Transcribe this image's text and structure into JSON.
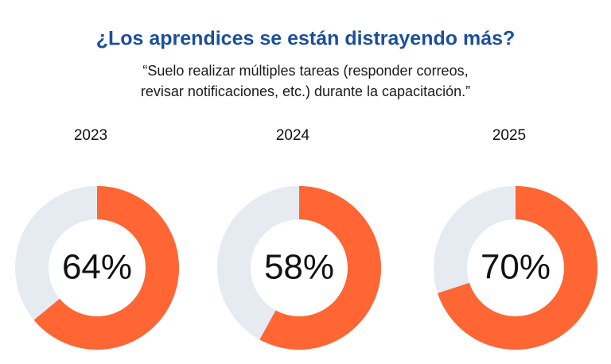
{
  "title": "¿Los aprendices se están distrayendo más?",
  "subtitle": [
    "“Suelo realizar múltiples tareas (responder correos,",
    "revisar notificaciones, etc.) durante la capacitación.”"
  ],
  "chart_data": [
    {
      "type": "donut",
      "title": "2023",
      "values": [
        64
      ],
      "value_labels": [
        "64%"
      ],
      "color": "#ff6633",
      "track_color": "#e6ebf2"
    },
    {
      "type": "donut",
      "title": "2024",
      "values": [
        58
      ],
      "value_labels": [
        "58%"
      ],
      "color": "#ff6633",
      "track_color": "#e6ebf2"
    },
    {
      "type": "donut",
      "title": "2025",
      "values": [
        70
      ],
      "value_labels": [
        "70%"
      ],
      "color": "#ff6633",
      "track_color": "#e6ebf2"
    }
  ]
}
